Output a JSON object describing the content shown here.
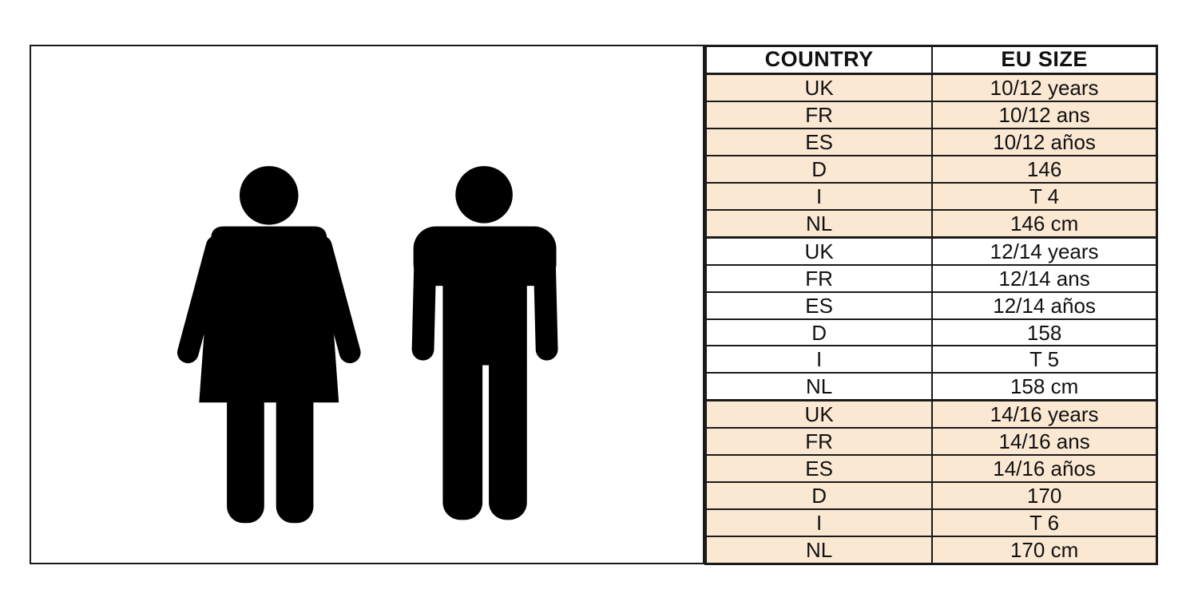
{
  "figure_panel": {
    "border_color": "#1a1a1a",
    "icons": [
      {
        "name": "woman-silhouette-icon",
        "color": "#000000"
      },
      {
        "name": "man-silhouette-icon",
        "color": "#000000"
      }
    ]
  },
  "size_table": {
    "columns": [
      "COUNTRY",
      "EU SIZE"
    ],
    "groups": [
      {
        "shaded": true,
        "rows": [
          {
            "country": "UK",
            "size": "10/12 years"
          },
          {
            "country": "FR",
            "size": "10/12 ans"
          },
          {
            "country": "ES",
            "size": "10/12 años"
          },
          {
            "country": "D",
            "size": "146"
          },
          {
            "country": "I",
            "size": "T 4"
          },
          {
            "country": "NL",
            "size": "146 cm"
          }
        ]
      },
      {
        "shaded": false,
        "rows": [
          {
            "country": "UK",
            "size": "12/14 years"
          },
          {
            "country": "FR",
            "size": "12/14 ans"
          },
          {
            "country": "ES",
            "size": "12/14 años"
          },
          {
            "country": "D",
            "size": "158"
          },
          {
            "country": "I",
            "size": "T 5"
          },
          {
            "country": "NL",
            "size": "158 cm"
          }
        ]
      },
      {
        "shaded": true,
        "rows": [
          {
            "country": "UK",
            "size": "14/16 years"
          },
          {
            "country": "FR",
            "size": "14/16 ans"
          },
          {
            "country": "ES",
            "size": "14/16 años"
          },
          {
            "country": "D",
            "size": "170"
          },
          {
            "country": "I",
            "size": "T 6"
          },
          {
            "country": "NL",
            "size": "170 cm"
          }
        ]
      }
    ],
    "style": {
      "shaded_row_bg": "#fbe8d3",
      "row_bg": "#ffffff",
      "border_color": "#1a1a1a",
      "text_color": "#111111"
    }
  }
}
